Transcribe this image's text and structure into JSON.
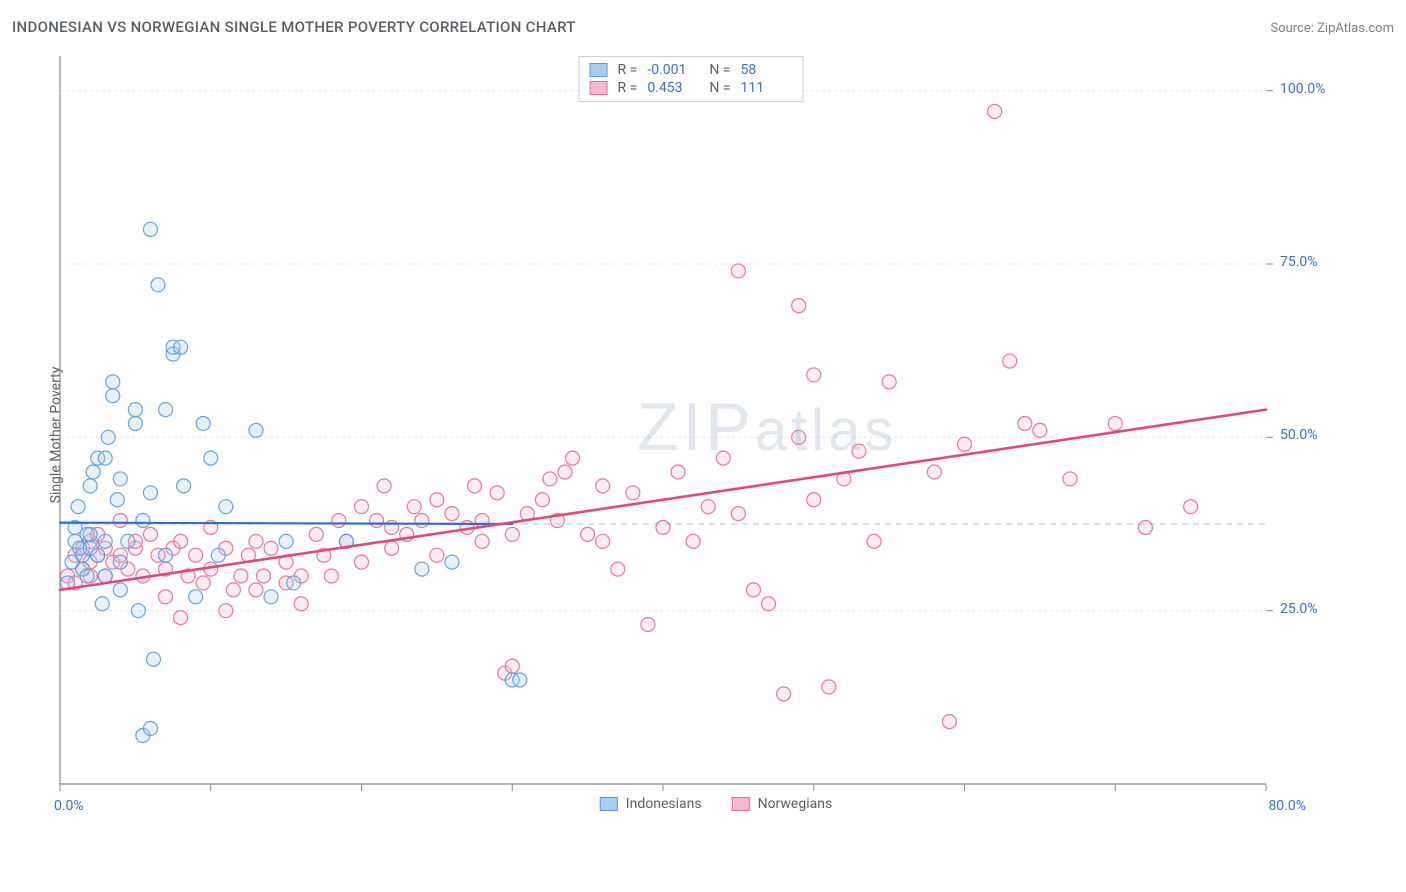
{
  "header": {
    "title": "INDONESIAN VS NORWEGIAN SINGLE MOTHER POVERTY CORRELATION CHART",
    "source_prefix": "Source: ",
    "source": "ZipAtlas.com"
  },
  "watermark": "ZIPatlas",
  "chart": {
    "type": "scatter",
    "ylabel": "Single Mother Poverty",
    "xlim": [
      0,
      80
    ],
    "ylim": [
      0,
      105
    ],
    "x_ticks": [
      0,
      10,
      20,
      30,
      40,
      50,
      60,
      70,
      80
    ],
    "x_tick_labels_shown": {
      "0": "0.0%",
      "80": "80.0%"
    },
    "y_ticks": [
      25,
      50,
      75,
      100
    ],
    "y_tick_labels": {
      "25": "25.0%",
      "50": "50.0%",
      "75": "75.0%",
      "100": "100.0%"
    },
    "hline_y": 37.5,
    "hline_color": "#a9c5ec",
    "background_color": "#ffffff",
    "grid_color": "#e4e6ea",
    "axis_line_color": "#888c93",
    "axis_label_color": "#3b6fd6",
    "marker_radius": 7,
    "marker_fill_opacity": 0.28,
    "marker_stroke_opacity": 0.9,
    "marker_stroke_width": 1.2,
    "series": {
      "indonesians": {
        "label": "Indonesians",
        "color": "#5a9ae0",
        "fill": "#a9cdf2",
        "R": "-0.001",
        "N": "58",
        "trend": {
          "x1": 0,
          "y1": 37.7,
          "x2": 30,
          "y2": 37.5,
          "color": "#2f6fd1",
          "width": 2.2
        },
        "points": [
          [
            0.5,
            29
          ],
          [
            0.8,
            32
          ],
          [
            1,
            35
          ],
          [
            1,
            37
          ],
          [
            1.2,
            40
          ],
          [
            1.3,
            34
          ],
          [
            1.5,
            31
          ],
          [
            1.5,
            33
          ],
          [
            1.8,
            36
          ],
          [
            1.8,
            30
          ],
          [
            2,
            34
          ],
          [
            2,
            36
          ],
          [
            2,
            43
          ],
          [
            2.2,
            45
          ],
          [
            2.5,
            47
          ],
          [
            2.5,
            33
          ],
          [
            2.8,
            26
          ],
          [
            3,
            35
          ],
          [
            3,
            30
          ],
          [
            3,
            47
          ],
          [
            3.2,
            50
          ],
          [
            3.5,
            56
          ],
          [
            3.5,
            58
          ],
          [
            3.8,
            41
          ],
          [
            4,
            44
          ],
          [
            4,
            32
          ],
          [
            4,
            28
          ],
          [
            4.5,
            35
          ],
          [
            5,
            52
          ],
          [
            5,
            54
          ],
          [
            5.2,
            25
          ],
          [
            5.5,
            7
          ],
          [
            5.5,
            38
          ],
          [
            6,
            8
          ],
          [
            6,
            42
          ],
          [
            6,
            80
          ],
          [
            6.2,
            18
          ],
          [
            6.5,
            72
          ],
          [
            7,
            54
          ],
          [
            7,
            33
          ],
          [
            7.5,
            62
          ],
          [
            7.5,
            63
          ],
          [
            8,
            63
          ],
          [
            8.2,
            43
          ],
          [
            9,
            27
          ],
          [
            9.5,
            52
          ],
          [
            10,
            47
          ],
          [
            10.5,
            33
          ],
          [
            11,
            40
          ],
          [
            13,
            51
          ],
          [
            14,
            27
          ],
          [
            15,
            35
          ],
          [
            15.5,
            29
          ],
          [
            19,
            35
          ],
          [
            24,
            31
          ],
          [
            26,
            32
          ],
          [
            30,
            15
          ],
          [
            30.5,
            15
          ]
        ]
      },
      "norwegians": {
        "label": "Norwegians",
        "color": "#e86a91",
        "fill": "#f7b9cd",
        "R": "0.453",
        "N": "111",
        "trend": {
          "x1": 0,
          "y1": 28,
          "x2": 80,
          "y2": 54,
          "color": "#e24878",
          "width": 2.6
        },
        "points": [
          [
            0.5,
            30
          ],
          [
            1,
            29
          ],
          [
            1,
            33
          ],
          [
            1.5,
            31
          ],
          [
            1.5,
            34
          ],
          [
            2,
            32
          ],
          [
            2,
            35
          ],
          [
            2,
            30
          ],
          [
            2.5,
            33
          ],
          [
            2.5,
            36
          ],
          [
            3,
            34
          ],
          [
            3,
            30
          ],
          [
            3.5,
            32
          ],
          [
            4,
            33
          ],
          [
            4,
            38
          ],
          [
            4.5,
            31
          ],
          [
            5,
            34
          ],
          [
            5,
            35
          ],
          [
            5.5,
            30
          ],
          [
            6,
            36
          ],
          [
            6.5,
            33
          ],
          [
            7,
            31
          ],
          [
            7,
            27
          ],
          [
            7.5,
            34
          ],
          [
            8,
            24
          ],
          [
            8,
            35
          ],
          [
            8.5,
            30
          ],
          [
            9,
            33
          ],
          [
            9.5,
            29
          ],
          [
            10,
            37
          ],
          [
            10,
            31
          ],
          [
            11,
            34
          ],
          [
            11,
            25
          ],
          [
            11.5,
            28
          ],
          [
            12,
            30
          ],
          [
            12.5,
            33
          ],
          [
            13,
            35
          ],
          [
            13,
            28
          ],
          [
            13.5,
            30
          ],
          [
            14,
            34
          ],
          [
            15,
            29
          ],
          [
            15,
            32
          ],
          [
            16,
            30
          ],
          [
            16,
            26
          ],
          [
            17,
            36
          ],
          [
            17.5,
            33
          ],
          [
            18,
            30
          ],
          [
            18.5,
            38
          ],
          [
            19,
            35
          ],
          [
            20,
            40
          ],
          [
            20,
            32
          ],
          [
            21,
            38
          ],
          [
            21.5,
            43
          ],
          [
            22,
            34
          ],
          [
            22,
            37
          ],
          [
            23,
            36
          ],
          [
            23.5,
            40
          ],
          [
            24,
            38
          ],
          [
            25,
            33
          ],
          [
            25,
            41
          ],
          [
            26,
            39
          ],
          [
            27,
            37
          ],
          [
            27.5,
            43
          ],
          [
            28,
            35
          ],
          [
            28,
            38
          ],
          [
            29,
            42
          ],
          [
            29.5,
            16
          ],
          [
            30,
            17
          ],
          [
            30,
            36
          ],
          [
            31,
            39
          ],
          [
            32,
            41
          ],
          [
            32.5,
            44
          ],
          [
            33,
            38
          ],
          [
            33.5,
            45
          ],
          [
            34,
            47
          ],
          [
            35,
            36
          ],
          [
            36,
            43
          ],
          [
            36,
            35
          ],
          [
            37,
            31
          ],
          [
            38,
            42
          ],
          [
            39,
            23
          ],
          [
            40,
            37
          ],
          [
            41,
            45
          ],
          [
            42,
            35
          ],
          [
            43,
            40
          ],
          [
            44,
            47
          ],
          [
            45,
            74
          ],
          [
            45,
            39
          ],
          [
            46,
            28
          ],
          [
            47,
            26
          ],
          [
            48,
            13
          ],
          [
            49,
            69
          ],
          [
            49,
            50
          ],
          [
            50,
            41
          ],
          [
            50,
            59
          ],
          [
            51,
            14
          ],
          [
            52,
            44
          ],
          [
            53,
            48
          ],
          [
            54,
            35
          ],
          [
            55,
            58
          ],
          [
            58,
            45
          ],
          [
            59,
            9
          ],
          [
            60,
            49
          ],
          [
            62,
            97
          ],
          [
            63,
            61
          ],
          [
            64,
            52
          ],
          [
            65,
            51
          ],
          [
            67,
            44
          ],
          [
            70,
            52
          ],
          [
            72,
            37
          ],
          [
            75,
            40
          ]
        ]
      }
    }
  },
  "legend_bottom": [
    "indonesians",
    "norwegians"
  ]
}
